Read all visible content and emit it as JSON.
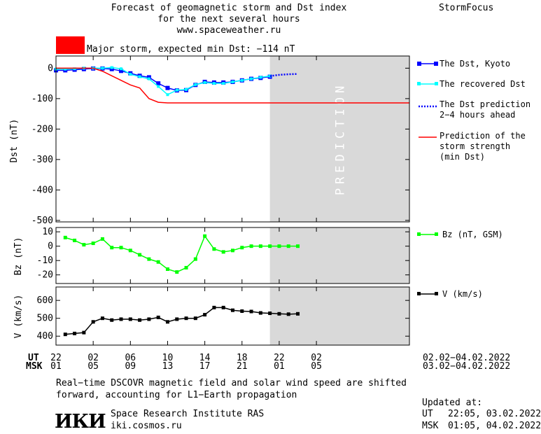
{
  "header": {
    "title_line1": "Forecast of geomagnetic storm and Dst index",
    "title_line2": "for the next several hours",
    "title_line3": "www.spaceweather.ru",
    "brand": "StormFocus"
  },
  "storm_status": {
    "text": "Major storm, expected min Dst: −114 nT",
    "color": "#ff0000"
  },
  "prediction_band_label": "PREDICTION",
  "colors": {
    "dst_kyoto": "#0000ff",
    "dst_recovered": "#00ffff",
    "dst_prediction": "#0000ff",
    "min_dst": "#ff0000",
    "bz": "#00ff00",
    "v": "#000000",
    "prediction_band": "#d9d9d9"
  },
  "legend": {
    "dst_kyoto": "The Dst, Kyoto",
    "dst_recovered": "The recovered Dst",
    "dst_prediction_l1": "The Dst prediction",
    "dst_prediction_l2": "2−4 hours ahead",
    "min_dst_l1": "Prediction of the",
    "min_dst_l2": "storm strength",
    "min_dst_l3": "(min Dst)",
    "bz": "Bz (nT, GSM)",
    "v": "V (km/s)"
  },
  "time_axis": {
    "ut_label": "UT",
    "msk_label": "MSK",
    "ut_ticks": [
      "22",
      "02",
      "06",
      "10",
      "14",
      "18",
      "22",
      "02"
    ],
    "msk_ticks": [
      "01",
      "05",
      "09",
      "13",
      "17",
      "21",
      "01",
      "05"
    ],
    "ut_range": "02.02−04.02.2022",
    "msk_range": "03.02−04.02.2022"
  },
  "footer": {
    "note_line1": "Real−time DSCOVR magnetic field and solar wind speed are shifted",
    "note_line2": "forward, accounting for L1−Earth propagation",
    "institute_logo": "ИКИ",
    "institute_name": "Space Research Institute RAS",
    "institute_url": "iki.cosmos.ru",
    "updated_label": "Updated at:",
    "updated_ut_label": "UT",
    "updated_ut": "22:05, 03.02.2022",
    "updated_msk_label": "MSK",
    "updated_msk": "01:05, 04.02.2022"
  },
  "chart_data": [
    {
      "type": "line",
      "name": "dst",
      "ylabel": "Dst (nT)",
      "yticks": [
        0,
        -100,
        -200,
        -300,
        -400,
        -500
      ],
      "ylim": [
        -505,
        40
      ],
      "xlim": [
        22,
        60
      ],
      "prediction_band": [
        45,
        60
      ],
      "series": [
        {
          "name": "The Dst, Kyoto",
          "key": "dst_kyoto",
          "x": [
            22,
            23,
            24,
            25,
            26,
            27,
            28,
            29,
            30,
            31,
            32,
            33,
            34,
            35,
            36,
            37,
            38,
            39,
            40,
            41,
            42,
            43,
            44,
            45
          ],
          "y": [
            -7,
            -7,
            -5,
            -3,
            -1,
            -1,
            -3,
            -9,
            -17,
            -25,
            -30,
            -50,
            -65,
            -73,
            -72,
            -55,
            -45,
            -47,
            -47,
            -45,
            -40,
            -35,
            -32,
            -28
          ]
        },
        {
          "name": "The recovered Dst",
          "key": "dst_recovered",
          "x": [
            22,
            23,
            24,
            25,
            26,
            27,
            28,
            29,
            30,
            31,
            32,
            33,
            34,
            35,
            36,
            37,
            38,
            39,
            40,
            41,
            42,
            43,
            44,
            45
          ],
          "y": [
            -3,
            -3,
            -2,
            0,
            0,
            0,
            2,
            -2,
            -20,
            -28,
            -35,
            -60,
            -87,
            -72,
            -70,
            -54,
            -47,
            -50,
            -50,
            -45,
            -40,
            -35,
            -30,
            -26
          ]
        },
        {
          "name": "The Dst prediction",
          "key": "dst_prediction",
          "x": [
            45,
            46,
            47,
            48
          ],
          "y": [
            -26,
            -22,
            -20,
            -19
          ]
        },
        {
          "name": "Prediction of the storm strength (min Dst)",
          "key": "min_dst",
          "x": [
            22,
            26,
            27,
            28,
            29,
            30,
            31,
            32,
            33,
            34,
            35,
            60
          ],
          "y": [
            0,
            0,
            -10,
            -25,
            -40,
            -55,
            -65,
            -100,
            -112,
            -114,
            -114,
            -114
          ]
        }
      ]
    },
    {
      "type": "line",
      "name": "bz",
      "ylabel": "Bz (nT)",
      "yticks": [
        10,
        0,
        -10,
        -20
      ],
      "ylim": [
        -26,
        13
      ],
      "xlim": [
        22,
        60
      ],
      "series": [
        {
          "name": "Bz (nT, GSM)",
          "key": "bz",
          "x": [
            23,
            24,
            25,
            26,
            27,
            28,
            29,
            30,
            31,
            32,
            33,
            34,
            35,
            36,
            37,
            38,
            39,
            40,
            41,
            42,
            43,
            44,
            45,
            46,
            47,
            48
          ],
          "y": [
            6,
            4,
            1,
            2,
            5,
            -1,
            -1,
            -3,
            -6,
            -9,
            -11,
            -16,
            -18,
            -15,
            -9,
            7,
            -2,
            -4,
            -3,
            -1,
            0,
            0,
            0,
            0,
            0,
            0
          ]
        }
      ]
    },
    {
      "type": "line",
      "name": "v",
      "ylabel": "V (km/s)",
      "yticks": [
        600,
        500,
        400
      ],
      "ylim": [
        350,
        675
      ],
      "xlim": [
        22,
        60
      ],
      "series": [
        {
          "name": "V (km/s)",
          "key": "v",
          "x": [
            23,
            24,
            25,
            26,
            27,
            28,
            29,
            30,
            31,
            32,
            33,
            34,
            35,
            36,
            37,
            38,
            39,
            40,
            41,
            42,
            43,
            44,
            45,
            46,
            47,
            48
          ],
          "y": [
            410,
            415,
            420,
            480,
            500,
            490,
            495,
            495,
            490,
            495,
            505,
            480,
            495,
            500,
            500,
            520,
            560,
            560,
            545,
            540,
            538,
            530,
            528,
            525,
            523,
            525
          ]
        }
      ]
    }
  ]
}
